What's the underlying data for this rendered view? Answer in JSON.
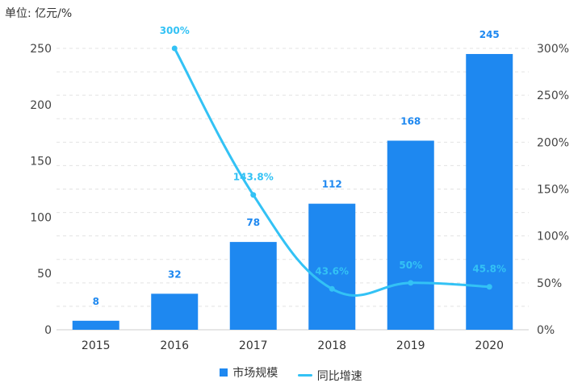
{
  "chart_data": {
    "type": "bar",
    "unit_label": "单位: 亿元/%",
    "categories": [
      "2015",
      "2016",
      "2017",
      "2018",
      "2019",
      "2020"
    ],
    "series": [
      {
        "name": "市场规模",
        "type": "bar",
        "axis": "left",
        "values": [
          8,
          32,
          78,
          112,
          168,
          245
        ],
        "labels": [
          "8",
          "32",
          "78",
          "112",
          "168",
          "245"
        ],
        "color": "#1e88f0"
      },
      {
        "name": "同比增速",
        "type": "line",
        "axis": "right",
        "values": [
          null,
          300,
          143.8,
          43.6,
          50,
          45.8
        ],
        "labels": [
          null,
          "300%",
          "143.8%",
          "43.6%",
          "50%",
          "45.8%"
        ],
        "color": "#33c2f5"
      }
    ],
    "y_left": {
      "min": 0,
      "max": 250,
      "ticks": [
        "0",
        "50",
        "100",
        "150",
        "200",
        "250"
      ]
    },
    "y_right": {
      "min": 0,
      "max": 300,
      "ticks": [
        "0%",
        "50%",
        "100%",
        "150%",
        "200%",
        "250%",
        "300%"
      ]
    },
    "grid": true,
    "legend_position": "bottom-center"
  }
}
